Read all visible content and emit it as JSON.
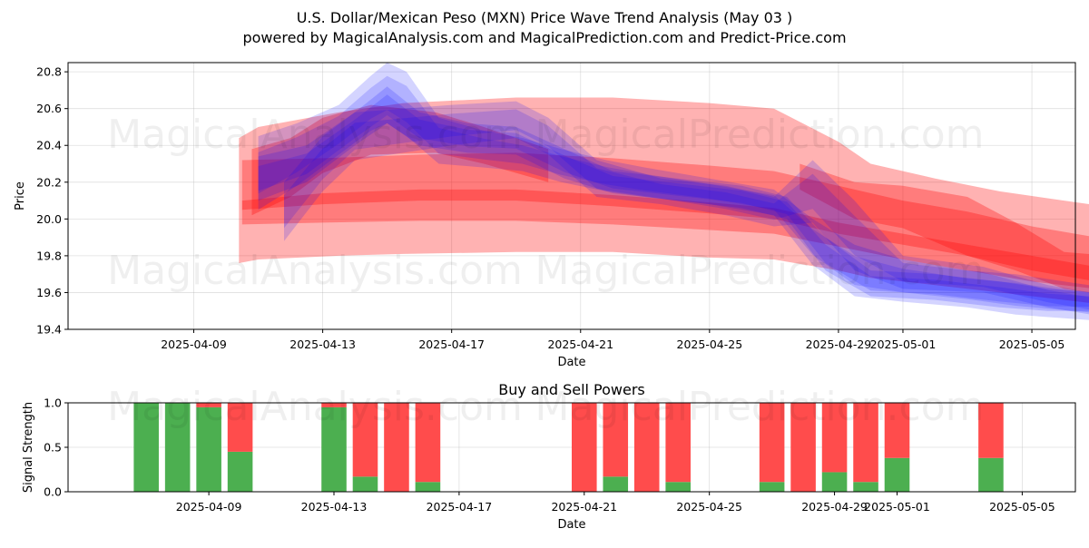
{
  "header": {
    "title_line1": "U.S. Dollar/Mexican Peso (MXN) Price Wave Trend Analysis (May 03 )",
    "title_line2": "powered by MagicalAnalysis.com and MagicalPrediction.com and Predict-Price.com"
  },
  "watermarks": [
    "MagicalAnalysis.com",
    "MagicalPrediction.com"
  ],
  "colors": {
    "sell_wave": "#ff0000",
    "buy_wave": "#0000ff",
    "buy_bar": "#4caf50",
    "sell_bar": "#ff4c4c"
  },
  "chart_data": [
    {
      "type": "area",
      "xlabel": "Date",
      "ylabel": "Price",
      "xlim": [
        "2025-04-05",
        "2025-05-06"
      ],
      "ylim": [
        19.4,
        20.85
      ],
      "y_ticks": [
        19.4,
        19.6,
        19.8,
        20.0,
        20.2,
        20.4,
        20.6,
        20.8
      ],
      "y_tick_labels": [
        "19.4",
        "19.6",
        "19.8",
        "20.0",
        "20.2",
        "20.4",
        "20.6",
        "20.8"
      ],
      "x_ticks": [
        "2025-04-09",
        "2025-04-13",
        "2025-04-17",
        "2025-04-21",
        "2025-04-25",
        "2025-04-29",
        "2025-05-01",
        "2025-05-05"
      ],
      "grid": true,
      "series": [
        {
          "name": "red-band-wide",
          "color": "#ff0000",
          "x": [
            5.4,
            6.0,
            8.5,
            10.5,
            14.0,
            17.0,
            20.0,
            22.0,
            24.0,
            25.0,
            27.0,
            29.0,
            31.0,
            33.0,
            35.3
          ],
          "upper": [
            20.44,
            20.5,
            20.58,
            20.63,
            20.66,
            20.66,
            20.63,
            20.6,
            20.42,
            20.3,
            20.22,
            20.15,
            20.1,
            20.05,
            20.0
          ],
          "lower": [
            19.76,
            19.78,
            19.8,
            19.81,
            19.82,
            19.82,
            19.79,
            19.78,
            19.72,
            19.68,
            19.64,
            19.6,
            19.56,
            19.52,
            19.5
          ]
        },
        {
          "name": "red-band-upper",
          "color": "#ff0000",
          "x": [
            5.5,
            8.0,
            11.0,
            14.0,
            17.0,
            20.0,
            22.0,
            24.0,
            26.0,
            28.0,
            30.0,
            32.0,
            35.3
          ],
          "upper": [
            20.32,
            20.33,
            20.35,
            20.36,
            20.33,
            20.29,
            20.26,
            20.18,
            20.1,
            20.04,
            19.96,
            19.9,
            19.84
          ],
          "lower": [
            20.05,
            20.08,
            20.1,
            20.1,
            20.07,
            20.03,
            20.0,
            19.92,
            19.86,
            19.8,
            19.72,
            19.66,
            19.6
          ]
        },
        {
          "name": "red-band-lower",
          "color": "#ff0000",
          "x": [
            5.5,
            8.0,
            11.0,
            14.0,
            17.0,
            20.0,
            22.0,
            24.0,
            26.0,
            28.0,
            30.0,
            32.0,
            35.3
          ],
          "upper": [
            20.1,
            20.14,
            20.16,
            20.16,
            20.13,
            20.09,
            20.06,
            19.98,
            19.92,
            19.86,
            19.8,
            19.74,
            19.68
          ],
          "lower": [
            19.97,
            19.98,
            19.99,
            19.99,
            19.97,
            19.94,
            19.92,
            19.85,
            19.78,
            19.72,
            19.66,
            19.62,
            19.56
          ]
        },
        {
          "name": "red-band-late",
          "color": "#ff0000",
          "x": [
            22.8,
            24.5,
            26.0,
            28.0,
            29.5,
            31.0,
            35.3
          ],
          "upper": [
            20.3,
            20.2,
            20.18,
            20.12,
            19.98,
            19.82,
            19.76
          ],
          "lower": [
            20.16,
            20.0,
            19.95,
            19.8,
            19.72,
            19.62,
            19.5
          ]
        },
        {
          "name": "red-band-mid",
          "color": "#ff0000",
          "x": [
            5.8,
            7.0,
            8.0,
            9.5,
            11.5,
            13.0,
            15.0
          ],
          "upper": [
            20.38,
            20.44,
            20.55,
            20.62,
            20.58,
            20.5,
            20.38
          ],
          "lower": [
            20.02,
            20.12,
            20.25,
            20.35,
            20.36,
            20.3,
            20.2
          ]
        },
        {
          "name": "blue-band-1",
          "color": "#0000ff",
          "x": [
            6.0,
            7.2,
            8.5,
            9.5,
            10.0,
            10.6,
            11.6,
            13.0,
            14.2,
            15.4,
            16.8,
            18.0,
            20.0,
            22.0,
            23.2,
            24.5,
            26.0,
            28.0,
            29.5,
            31.0,
            32.6,
            35.3
          ],
          "upper": [
            20.45,
            20.52,
            20.62,
            20.78,
            20.85,
            20.8,
            20.55,
            20.48,
            20.44,
            20.38,
            20.32,
            20.28,
            20.22,
            20.16,
            20.0,
            19.86,
            19.78,
            19.72,
            19.7,
            19.66,
            19.62,
            19.58
          ],
          "lower": [
            20.05,
            20.18,
            20.35,
            20.48,
            20.52,
            20.45,
            20.3,
            20.28,
            20.26,
            20.2,
            20.15,
            20.12,
            20.08,
            20.02,
            19.75,
            19.58,
            19.55,
            19.52,
            19.48,
            19.46,
            19.44,
            19.4
          ]
        },
        {
          "name": "blue-band-2",
          "color": "#0000ff",
          "x": [
            6.0,
            7.5,
            9.0,
            10.0,
            11.0,
            12.5,
            14.0,
            15.5,
            17.0,
            19.0,
            21.0,
            22.4,
            23.6,
            25.0,
            27.0,
            29.0,
            30.5,
            32.0,
            35.3
          ],
          "upper": [
            20.34,
            20.4,
            20.58,
            20.72,
            20.58,
            20.52,
            20.5,
            20.38,
            20.26,
            20.22,
            20.18,
            20.12,
            19.9,
            19.72,
            19.7,
            19.66,
            19.62,
            19.6,
            19.62
          ],
          "lower": [
            20.1,
            20.2,
            20.4,
            20.52,
            20.4,
            20.36,
            20.35,
            20.22,
            20.14,
            20.1,
            20.06,
            20.0,
            19.72,
            19.58,
            19.56,
            19.52,
            19.5,
            19.5,
            19.52
          ]
        },
        {
          "name": "blue-band-3",
          "color": "#0000ff",
          "x": [
            6.8,
            8.0,
            9.0,
            10.5,
            12.0,
            14.0,
            15.0,
            16.5,
            18.5,
            20.5,
            22.0,
            23.2,
            24.5,
            26.0,
            28.5,
            30.5,
            32.5,
            35.3
          ],
          "upper": [
            20.2,
            20.45,
            20.58,
            20.6,
            20.62,
            20.64,
            20.55,
            20.32,
            20.22,
            20.18,
            20.12,
            20.32,
            20.1,
            19.8,
            19.74,
            19.64,
            19.58,
            19.56
          ],
          "lower": [
            19.88,
            20.15,
            20.32,
            20.36,
            20.4,
            20.44,
            20.35,
            20.12,
            20.08,
            20.02,
            19.96,
            19.98,
            19.72,
            19.62,
            19.6,
            19.52,
            19.46,
            19.44
          ]
        }
      ]
    },
    {
      "type": "bar",
      "title": "Buy and Sell Powers",
      "xlabel": "Date",
      "ylabel": "Signal Strength",
      "ylim": [
        0,
        1.0
      ],
      "y_ticks": [
        0.0,
        0.5,
        1.0
      ],
      "y_tick_labels": [
        "0.0",
        "0.5",
        "1.0"
      ],
      "x_ticks": [
        "2025-04-09",
        "2025-04-13",
        "2025-04-17",
        "2025-04-21",
        "2025-04-25",
        "2025-04-29",
        "2025-05-01",
        "2025-05-05"
      ],
      "categories": [
        "2025-04-07",
        "2025-04-08",
        "2025-04-09",
        "2025-04-10",
        "2025-04-13",
        "2025-04-14",
        "2025-04-15",
        "2025-04-16",
        "2025-04-21",
        "2025-04-22",
        "2025-04-23",
        "2025-04-24",
        "2025-04-27",
        "2025-04-28",
        "2025-04-29",
        "2025-04-30",
        "2025-05-01",
        "2025-05-04"
      ],
      "series": [
        {
          "name": "Buy",
          "color": "#4caf50",
          "values": [
            1.0,
            1.0,
            0.95,
            0.45,
            0.95,
            0.17,
            0.0,
            0.11,
            0.0,
            0.17,
            0.0,
            0.11,
            0.11,
            0.0,
            0.22,
            0.11,
            0.38,
            0.38
          ]
        },
        {
          "name": "Sell",
          "color": "#ff4c4c",
          "values": [
            0.0,
            0.0,
            0.05,
            0.55,
            0.05,
            0.83,
            1.0,
            0.89,
            1.0,
            0.83,
            1.0,
            0.89,
            0.89,
            1.0,
            0.78,
            0.89,
            0.62,
            0.62
          ]
        }
      ]
    }
  ]
}
